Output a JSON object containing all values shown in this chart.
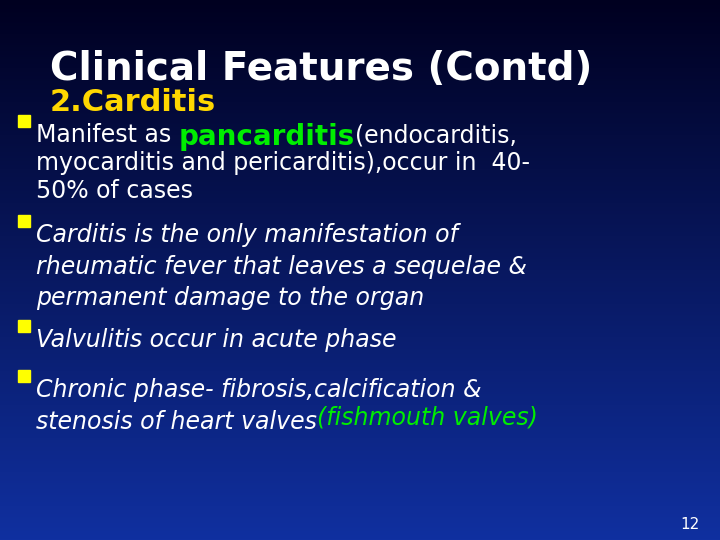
{
  "title": "Clinical Features (Contd)",
  "subtitle": "2.Carditis",
  "title_color": "#ffffff",
  "subtitle_color": "#ffd700",
  "bg_color": "#1a3080",
  "bullet_color": "#ffff00",
  "highlight_green": "#00ee00",
  "page_number": "12",
  "title_fontsize": 28,
  "subtitle_fontsize": 22,
  "body_fontsize": 17,
  "pan_fontsize": 20
}
